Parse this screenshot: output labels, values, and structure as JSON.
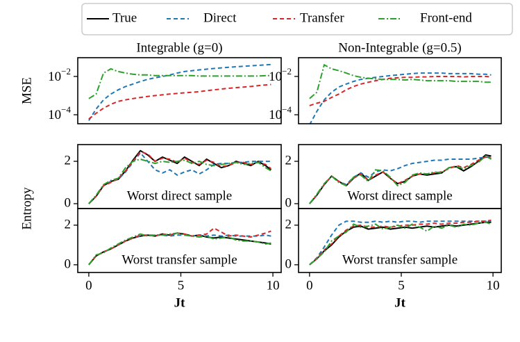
{
  "legend": [
    {
      "name": "True",
      "color": "#000000",
      "dash": "none"
    },
    {
      "name": "Direct",
      "color": "#1f77b4",
      "dash": "6,4"
    },
    {
      "name": "Transfer",
      "color": "#d62728",
      "dash": "6,4"
    },
    {
      "name": "Front-end",
      "color": "#2ca02c",
      "dash": "9,3,2,3"
    }
  ],
  "chart_data": [
    {
      "type": "line",
      "title": "Integrable (g=0)",
      "ylabel": "MSE",
      "log": true,
      "x": [
        0,
        0.4,
        0.8,
        1.2,
        1.6,
        2,
        2.4,
        2.8,
        3.2,
        3.6,
        4,
        4.4,
        4.8,
        5.2,
        5.6,
        6,
        6.4,
        6.8,
        7.2,
        7.6,
        8,
        8.4,
        8.8,
        9.2,
        9.6,
        9.9
      ],
      "xlim": [
        -0.6,
        10.45
      ],
      "ylim": [
        3.4e-05,
        0.095
      ],
      "yticks": [
        {
          "value": 0.0001,
          "label": "10",
          "exponent": "−4"
        },
        {
          "value": 0.01,
          "label": "10",
          "exponent": "−2"
        }
      ],
      "series": [
        {
          "color": "#1f77b4",
          "values": [
            5e-05,
            0.0002,
            0.0006,
            0.0012,
            0.002,
            0.003,
            0.004,
            0.0055,
            0.007,
            0.0085,
            0.01,
            0.012,
            0.015,
            0.018,
            0.02,
            0.022,
            0.024,
            0.026,
            0.028,
            0.03,
            0.032,
            0.034,
            0.036,
            0.038,
            0.04,
            0.042
          ]
        },
        {
          "color": "#d62728",
          "values": [
            6e-05,
            0.00012,
            0.00022,
            0.00035,
            0.0005,
            0.0006,
            0.0007,
            0.0008,
            0.0009,
            0.001,
            0.0011,
            0.0012,
            0.0013,
            0.0014,
            0.0015,
            0.0016,
            0.0018,
            0.002,
            0.0022,
            0.0024,
            0.0026,
            0.0028,
            0.003,
            0.0033,
            0.0036,
            0.0038
          ]
        },
        {
          "color": "#2ca02c",
          "values": [
            0.0007,
            0.0012,
            0.015,
            0.025,
            0.018,
            0.015,
            0.013,
            0.012,
            0.012,
            0.011,
            0.011,
            0.011,
            0.011,
            0.011,
            0.011,
            0.0105,
            0.0105,
            0.0105,
            0.0105,
            0.0105,
            0.0105,
            0.0105,
            0.0105,
            0.0105,
            0.011,
            0.011
          ]
        }
      ]
    },
    {
      "type": "line",
      "title": "Non-Integrable (g=0.5)",
      "log": true,
      "x": [
        0,
        0.4,
        0.8,
        1.2,
        1.6,
        2,
        2.4,
        2.8,
        3.2,
        3.6,
        4,
        4.4,
        4.8,
        5.2,
        5.6,
        6,
        6.4,
        6.8,
        7.2,
        7.6,
        8,
        8.4,
        8.8,
        9.2,
        9.6,
        9.9
      ],
      "xlim": [
        -0.6,
        10.45
      ],
      "ylim": [
        3.4e-05,
        0.095
      ],
      "yticks": [
        {
          "value": 0.0001,
          "label": "10",
          "exponent": "−4"
        },
        {
          "value": 0.01,
          "label": "10",
          "exponent": "−2"
        }
      ],
      "series": [
        {
          "color": "#1f77b4",
          "values": [
            3e-05,
            0.00015,
            0.0006,
            0.0015,
            0.0028,
            0.004,
            0.0055,
            0.007,
            0.008,
            0.009,
            0.01,
            0.011,
            0.012,
            0.013,
            0.014,
            0.015,
            0.015,
            0.015,
            0.015,
            0.014,
            0.014,
            0.014,
            0.014,
            0.013,
            0.013,
            0.012
          ]
        },
        {
          "color": "#d62728",
          "values": [
            0.0003,
            0.0004,
            0.0005,
            0.0008,
            0.0012,
            0.002,
            0.003,
            0.004,
            0.005,
            0.006,
            0.007,
            0.008,
            0.0085,
            0.009,
            0.009,
            0.0095,
            0.0095,
            0.01,
            0.01,
            0.01,
            0.01,
            0.0095,
            0.01,
            0.01,
            0.01,
            0.0095
          ]
        },
        {
          "color": "#2ca02c",
          "values": [
            0.0007,
            0.0015,
            0.04,
            0.025,
            0.02,
            0.015,
            0.011,
            0.009,
            0.008,
            0.0075,
            0.007,
            0.007,
            0.007,
            0.0065,
            0.007,
            0.0065,
            0.006,
            0.006,
            0.006,
            0.006,
            0.0055,
            0.0055,
            0.0055,
            0.0055,
            0.005,
            0.005
          ]
        }
      ]
    },
    {
      "type": "line",
      "ylabel": "Entropy",
      "annotation": "Worst direct sample",
      "x": [
        0,
        0.4,
        0.8,
        1.2,
        1.6,
        2,
        2.4,
        2.8,
        3.2,
        3.6,
        4,
        4.4,
        4.8,
        5.2,
        5.6,
        6,
        6.4,
        6.8,
        7.2,
        7.6,
        8,
        8.4,
        8.8,
        9.2,
        9.6,
        9.9
      ],
      "xlim": [
        -0.6,
        10.45
      ],
      "ylim": [
        -0.23,
        2.79
      ],
      "yticks": [
        0,
        2
      ],
      "series": [
        {
          "color": "#000000",
          "values": [
            0,
            0.35,
            0.85,
            1.05,
            1.15,
            1.55,
            2.05,
            2.5,
            2.3,
            2.0,
            2.2,
            2.05,
            1.9,
            2.2,
            2.0,
            1.8,
            2.1,
            1.9,
            1.7,
            1.8,
            2.0,
            1.9,
            1.8,
            2.0,
            1.8,
            1.6
          ]
        },
        {
          "color": "#1f77b4",
          "values": [
            0,
            0.35,
            0.85,
            1.05,
            1.15,
            1.5,
            1.95,
            2.4,
            2.0,
            1.6,
            1.45,
            1.6,
            1.35,
            1.5,
            1.6,
            1.4,
            1.6,
            1.85,
            1.9,
            1.9,
            1.95,
            1.95,
            2.0,
            2.0,
            2.0,
            2.0
          ]
        },
        {
          "color": "#d62728",
          "values": [
            0,
            0.35,
            0.85,
            1.0,
            1.2,
            1.55,
            2.0,
            2.45,
            2.35,
            2.0,
            2.15,
            2.1,
            1.95,
            2.15,
            1.95,
            1.85,
            2.05,
            1.95,
            1.75,
            1.8,
            1.95,
            1.95,
            1.85,
            1.95,
            1.85,
            1.65
          ]
        },
        {
          "color": "#2ca02c",
          "values": [
            0,
            0.4,
            0.9,
            1.1,
            1.2,
            1.7,
            2.0,
            2.1,
            2.0,
            1.9,
            2.0,
            1.95,
            2.0,
            2.05,
            1.9,
            2.0,
            1.85,
            1.8,
            1.85,
            1.9,
            1.95,
            1.85,
            1.9,
            1.95,
            1.7,
            1.55
          ]
        }
      ]
    },
    {
      "type": "line",
      "annotation": "Worst direct sample",
      "x": [
        0,
        0.4,
        0.8,
        1.2,
        1.6,
        2,
        2.4,
        2.8,
        3.2,
        3.6,
        4,
        4.4,
        4.8,
        5.2,
        5.6,
        6,
        6.4,
        6.8,
        7.2,
        7.6,
        8,
        8.4,
        8.8,
        9.2,
        9.6,
        9.9
      ],
      "xlim": [
        -0.6,
        10.45
      ],
      "ylim": [
        -0.23,
        2.79
      ],
      "yticks": [
        0,
        2
      ],
      "series": [
        {
          "color": "#000000",
          "values": [
            0,
            0.4,
            0.9,
            1.3,
            1.05,
            0.85,
            1.2,
            1.45,
            1.1,
            1.3,
            1.5,
            1.2,
            0.95,
            1.05,
            1.3,
            1.4,
            1.35,
            1.4,
            1.45,
            1.7,
            1.75,
            1.55,
            1.75,
            2.0,
            2.3,
            2.25
          ]
        },
        {
          "color": "#1f77b4",
          "values": [
            0,
            0.4,
            0.9,
            1.3,
            1.05,
            0.9,
            1.25,
            1.45,
            1.25,
            1.5,
            1.6,
            1.55,
            1.65,
            1.8,
            1.9,
            1.95,
            2.0,
            2.05,
            2.05,
            2.1,
            2.1,
            2.1,
            2.1,
            2.15,
            2.2,
            2.2
          ]
        },
        {
          "color": "#d62728",
          "values": [
            0,
            0.4,
            0.9,
            1.3,
            1.05,
            0.85,
            1.2,
            1.4,
            1.1,
            1.35,
            1.5,
            1.2,
            0.95,
            1.1,
            1.3,
            1.4,
            1.4,
            1.45,
            1.5,
            1.65,
            1.8,
            1.7,
            1.85,
            2.05,
            2.2,
            2.15
          ]
        },
        {
          "color": "#2ca02c",
          "values": [
            0,
            0.45,
            0.95,
            1.3,
            1.0,
            0.85,
            1.25,
            1.35,
            1.05,
            1.6,
            1.55,
            1.25,
            0.85,
            1.0,
            1.35,
            1.45,
            1.4,
            1.5,
            1.45,
            1.7,
            1.75,
            1.65,
            1.8,
            1.95,
            2.25,
            2.1
          ]
        }
      ]
    },
    {
      "type": "line",
      "annotation": "Worst transfer sample",
      "xlabel": "Jt",
      "x": [
        0,
        0.4,
        0.8,
        1.2,
        1.6,
        2,
        2.4,
        2.8,
        3.2,
        3.6,
        4,
        4.4,
        4.8,
        5.2,
        5.6,
        6,
        6.4,
        6.8,
        7.2,
        7.6,
        8,
        8.4,
        8.8,
        9.2,
        9.6,
        9.9
      ],
      "xlim": [
        -0.6,
        10.45
      ],
      "xticks": [
        0,
        5,
        10
      ],
      "ylim": [
        -0.39,
        2.84
      ],
      "yticks": [
        0,
        2
      ],
      "series": [
        {
          "color": "#000000",
          "values": [
            0,
            0.45,
            0.65,
            0.8,
            1.0,
            1.2,
            1.35,
            1.45,
            1.5,
            1.45,
            1.55,
            1.5,
            1.6,
            1.55,
            1.45,
            1.5,
            1.4,
            1.35,
            1.4,
            1.35,
            1.3,
            1.25,
            1.2,
            1.15,
            1.1,
            1.05
          ]
        },
        {
          "color": "#1f77b4",
          "values": [
            0,
            0.45,
            0.65,
            0.8,
            1.0,
            1.2,
            1.35,
            1.45,
            1.5,
            1.5,
            1.5,
            1.45,
            1.5,
            1.5,
            1.45,
            1.5,
            1.45,
            1.5,
            1.45,
            1.5,
            1.45,
            1.45,
            1.45,
            1.45,
            1.5,
            1.45
          ]
        },
        {
          "color": "#d62728",
          "values": [
            0,
            0.45,
            0.65,
            0.8,
            1.0,
            1.2,
            1.35,
            1.5,
            1.5,
            1.45,
            1.55,
            1.5,
            1.6,
            1.55,
            1.45,
            1.5,
            1.55,
            1.85,
            1.65,
            1.45,
            1.5,
            1.45,
            1.4,
            1.5,
            1.6,
            1.7
          ]
        },
        {
          "color": "#2ca02c",
          "values": [
            0,
            0.5,
            0.6,
            0.85,
            1.05,
            1.25,
            1.4,
            1.55,
            1.45,
            1.5,
            1.5,
            1.55,
            1.6,
            1.5,
            1.45,
            1.4,
            1.45,
            1.3,
            1.35,
            1.4,
            1.25,
            1.2,
            1.2,
            1.15,
            1.05,
            1.1
          ]
        }
      ]
    },
    {
      "type": "line",
      "annotation": "Worst transfer sample",
      "xlabel": "Jt",
      "x": [
        0,
        0.4,
        0.8,
        1.2,
        1.6,
        2,
        2.4,
        2.8,
        3.2,
        3.6,
        4,
        4.4,
        4.8,
        5.2,
        5.6,
        6,
        6.4,
        6.8,
        7.2,
        7.6,
        8,
        8.4,
        8.8,
        9.2,
        9.6,
        9.9
      ],
      "xlim": [
        -0.6,
        10.45
      ],
      "xticks": [
        0,
        5,
        10
      ],
      "ylim": [
        -0.39,
        2.84
      ],
      "yticks": [
        0,
        2
      ],
      "series": [
        {
          "color": "#000000",
          "values": [
            0,
            0.3,
            0.7,
            1.0,
            1.4,
            1.7,
            1.9,
            1.95,
            1.8,
            1.85,
            1.9,
            1.8,
            1.85,
            1.9,
            1.85,
            1.9,
            1.95,
            1.9,
            1.95,
            2.0,
            1.95,
            2.0,
            2.05,
            2.1,
            2.15,
            2.15
          ]
        },
        {
          "color": "#1f77b4",
          "values": [
            0,
            0.35,
            0.9,
            1.5,
            2.0,
            2.2,
            2.2,
            2.15,
            2.15,
            2.2,
            2.15,
            2.2,
            2.15,
            2.2,
            2.2,
            2.15,
            2.2,
            2.2,
            2.2,
            2.2,
            2.2,
            2.2,
            2.2,
            2.2,
            2.2,
            2.2
          ]
        },
        {
          "color": "#d62728",
          "values": [
            0,
            0.3,
            0.75,
            1.05,
            1.45,
            1.75,
            1.95,
            2.0,
            1.9,
            1.9,
            1.95,
            1.9,
            1.95,
            2.0,
            2.0,
            2.05,
            2.05,
            2.1,
            2.05,
            2.1,
            2.1,
            2.15,
            2.15,
            2.2,
            2.2,
            2.25
          ]
        },
        {
          "color": "#2ca02c",
          "values": [
            0,
            0.3,
            0.65,
            1.2,
            1.45,
            1.65,
            2.05,
            1.9,
            1.95,
            2.05,
            1.8,
            1.9,
            2.0,
            1.85,
            2.05,
            1.9,
            1.7,
            1.95,
            1.85,
            2.0,
            1.9,
            2.05,
            2.0,
            2.1,
            2.15,
            2.05
          ]
        }
      ]
    }
  ]
}
